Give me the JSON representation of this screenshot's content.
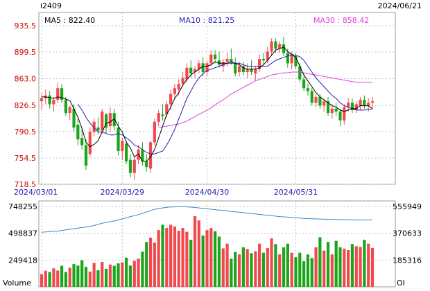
{
  "header": {
    "symbol": "i2409",
    "date": "2024/06/21"
  },
  "legend": {
    "ma5": "MA5 : 822.40",
    "ma10": "MA10 : 821.25",
    "ma30": "MA30 : 858.42"
  },
  "colors": {
    "up": "#f04a50",
    "down": "#1aa51a",
    "ma5": "#000000",
    "ma10": "#1f1fb4",
    "ma30": "#e040e0",
    "oi": "#3a86c8",
    "grid": "#bfbfbf",
    "axis_text": "#cc0000",
    "label_text": "#000000"
  },
  "chart_data": [
    {
      "type": "candlestick",
      "title": "",
      "ylim": [
        718.5,
        953.5
      ],
      "y_ticks": [
        935.5,
        899.5,
        863.0,
        826.5,
        790.5,
        754.5,
        718.5
      ],
      "y_tick_labels": [
        "935.5",
        "899.5",
        "863.0",
        "826.5",
        "790.5",
        "754.5",
        "718.5"
      ],
      "x_tick_labels": [
        {
          "label": "2024/03/01",
          "index": 0
        },
        {
          "label": "2024/03/29",
          "index": 20
        },
        {
          "label": "2024/04/30",
          "index": 41
        },
        {
          "label": "2024/05/31",
          "index": 63
        }
      ],
      "series_names": [
        "MA5",
        "MA10",
        "MA30"
      ],
      "ohlc_description": "daily candles, open/high/low/close in price units, estimated from the chart",
      "ohlc": [
        [
          832,
          842,
          820,
          836
        ],
        [
          836,
          848,
          828,
          840
        ],
        [
          840,
          846,
          822,
          828
        ],
        [
          828,
          838,
          818,
          834
        ],
        [
          834,
          858,
          830,
          850
        ],
        [
          850,
          856,
          830,
          834
        ],
        [
          834,
          838,
          812,
          816
        ],
        [
          816,
          826,
          806,
          824
        ],
        [
          822,
          828,
          790,
          796
        ],
        [
          800,
          808,
          772,
          780
        ],
        [
          782,
          794,
          766,
          772
        ],
        [
          772,
          780,
          738,
          744
        ],
        [
          760,
          796,
          756,
          790
        ],
        [
          790,
          808,
          784,
          804
        ],
        [
          796,
          810,
          786,
          792
        ],
        [
          792,
          822,
          788,
          818
        ],
        [
          814,
          816,
          788,
          796
        ],
        [
          798,
          824,
          790,
          816
        ],
        [
          816,
          822,
          792,
          798
        ],
        [
          796,
          804,
          758,
          764
        ],
        [
          764,
          782,
          752,
          778
        ],
        [
          774,
          778,
          746,
          750
        ],
        [
          752,
          760,
          728,
          734
        ],
        [
          734,
          756,
          724,
          752
        ],
        [
          752,
          772,
          746,
          766
        ],
        [
          766,
          776,
          744,
          750
        ],
        [
          750,
          760,
          736,
          742
        ],
        [
          740,
          778,
          734,
          776
        ],
        [
          776,
          808,
          772,
          804
        ],
        [
          804,
          820,
          798,
          816
        ],
        [
          814,
          828,
          806,
          812
        ],
        [
          814,
          832,
          810,
          828
        ],
        [
          828,
          848,
          820,
          842
        ],
        [
          842,
          856,
          836,
          850
        ],
        [
          848,
          862,
          840,
          856
        ],
        [
          856,
          872,
          852,
          864
        ],
        [
          862,
          884,
          858,
          878
        ],
        [
          878,
          888,
          864,
          870
        ],
        [
          872,
          880,
          864,
          876
        ],
        [
          876,
          888,
          870,
          884
        ],
        [
          884,
          892,
          866,
          872
        ],
        [
          872,
          888,
          866,
          884
        ],
        [
          884,
          902,
          880,
          896
        ],
        [
          896,
          902,
          884,
          890
        ],
        [
          888,
          900,
          878,
          882
        ],
        [
          880,
          890,
          872,
          886
        ],
        [
          886,
          898,
          880,
          890
        ],
        [
          890,
          904,
          882,
          886
        ],
        [
          884,
          892,
          866,
          870
        ],
        [
          872,
          886,
          866,
          880
        ],
        [
          880,
          886,
          868,
          872
        ],
        [
          872,
          884,
          864,
          876
        ],
        [
          876,
          888,
          868,
          872
        ],
        [
          870,
          880,
          860,
          876
        ],
        [
          876,
          896,
          872,
          890
        ],
        [
          890,
          898,
          882,
          888
        ],
        [
          888,
          906,
          884,
          900
        ],
        [
          900,
          918,
          894,
          914
        ],
        [
          914,
          918,
          898,
          904
        ],
        [
          904,
          914,
          898,
          910
        ],
        [
          910,
          920,
          894,
          898
        ],
        [
          898,
          904,
          878,
          884
        ],
        [
          884,
          900,
          876,
          896
        ],
        [
          894,
          898,
          876,
          880
        ],
        [
          880,
          884,
          858,
          862
        ],
        [
          862,
          866,
          846,
          850
        ],
        [
          850,
          856,
          840,
          846
        ],
        [
          846,
          850,
          826,
          830
        ],
        [
          830,
          842,
          824,
          838
        ],
        [
          838,
          842,
          822,
          826
        ],
        [
          826,
          836,
          818,
          832
        ],
        [
          832,
          838,
          812,
          816
        ],
        [
          816,
          828,
          808,
          822
        ],
        [
          822,
          830,
          812,
          818
        ],
        [
          818,
          822,
          798,
          806
        ],
        [
          806,
          828,
          800,
          824
        ],
        [
          824,
          836,
          818,
          830
        ],
        [
          830,
          836,
          816,
          820
        ],
        [
          820,
          832,
          816,
          828
        ],
        [
          826,
          838,
          820,
          834
        ],
        [
          834,
          840,
          822,
          826
        ],
        [
          826,
          836,
          818,
          830
        ],
        [
          830,
          838,
          822,
          832
        ]
      ],
      "ma5": [
        838,
        838,
        837,
        836,
        838,
        837,
        835,
        833,
        822,
        810,
        795,
        776,
        770,
        773,
        778,
        790,
        802,
        804,
        808,
        798,
        790,
        776,
        768,
        756,
        760,
        750,
        750,
        756,
        766,
        782,
        798,
        814,
        824,
        836,
        844,
        854,
        862,
        868,
        872,
        876,
        880,
        880,
        882,
        886,
        884,
        884,
        884,
        886,
        884,
        882,
        878,
        876,
        876,
        876,
        878,
        882,
        888,
        895,
        902,
        904,
        906,
        900,
        896,
        892,
        880,
        868,
        860,
        852,
        844,
        838,
        834,
        830,
        826,
        824,
        820,
        818,
        820,
        822,
        822,
        826,
        826,
        826,
        822
      ],
      "ma10": [
        null,
        null,
        null,
        null,
        null,
        null,
        null,
        null,
        null,
        828,
        820,
        810,
        802,
        796,
        790,
        790,
        788,
        786,
        786,
        788,
        786,
        782,
        778,
        772,
        770,
        766,
        762,
        760,
        760,
        762,
        764,
        772,
        782,
        794,
        808,
        822,
        836,
        846,
        856,
        864,
        870,
        874,
        876,
        878,
        880,
        882,
        884,
        884,
        884,
        884,
        882,
        880,
        880,
        880,
        880,
        880,
        880,
        884,
        888,
        890,
        892,
        894,
        896,
        895,
        893,
        888,
        880,
        872,
        864,
        858,
        852,
        846,
        840,
        836,
        830,
        826,
        824,
        822,
        820,
        820,
        820,
        821,
        821
      ],
      "ma30": [
        null,
        null,
        null,
        null,
        null,
        null,
        null,
        null,
        null,
        null,
        null,
        null,
        null,
        null,
        null,
        null,
        null,
        null,
        null,
        null,
        null,
        null,
        null,
        null,
        null,
        null,
        null,
        null,
        null,
        796,
        797,
        798,
        799,
        800,
        801,
        803,
        805,
        808,
        811,
        814,
        817,
        820,
        823,
        827,
        831,
        834,
        838,
        842,
        845,
        848,
        851,
        854,
        857,
        860,
        862,
        864,
        866,
        868,
        869,
        870,
        871,
        871,
        872,
        872,
        872,
        871,
        870,
        869,
        868,
        867,
        866,
        865,
        864,
        863,
        862,
        861,
        860,
        859,
        858,
        858,
        858,
        858,
        858
      ]
    },
    {
      "type": "bar",
      "title": "",
      "ylabel_left": "Volume",
      "ylabel_right": "OI",
      "ylim_left": [
        0,
        748255
      ],
      "y_ticks_left": [
        748255,
        498837,
        249418
      ],
      "y_tick_labels_left": [
        "748255",
        "498837",
        "249418"
      ],
      "ylim_right": [
        0,
        555949
      ],
      "y_ticks_right": [
        555949,
        370633,
        185316
      ],
      "y_tick_labels_right": [
        "555949",
        "370633",
        "185316"
      ],
      "volume": [
        118000,
        150000,
        138000,
        172000,
        152000,
        196000,
        138000,
        178000,
        212000,
        198000,
        248000,
        186000,
        142000,
        222000,
        154000,
        232000,
        168000,
        208000,
        196000,
        218000,
        228000,
        272000,
        198000,
        242000,
        262000,
        328000,
        418000,
        458000,
        412000,
        528000,
        578000,
        548000,
        578000,
        562000,
        522000,
        548000,
        512000,
        438000,
        658000,
        618000,
        478000,
        528000,
        548000,
        518000,
        468000,
        358000,
        402000,
        262000,
        324000,
        302000,
        368000,
        352000,
        314000,
        332000,
        402000,
        318000,
        362000,
        452000,
        398000,
        302000,
        368000,
        402000,
        318000,
        276000,
        318000,
        238000,
        302000,
        268000,
        368000,
        462000,
        338000,
        418000,
        302000,
        428000,
        368000,
        356000,
        342000,
        398000,
        378000,
        372000,
        438000,
        402000,
        362000
      ],
      "oi": [
        378000,
        380000,
        382000,
        384000,
        386000,
        390000,
        394000,
        398000,
        402000,
        406000,
        410000,
        414000,
        418000,
        424000,
        432000,
        440000,
        446000,
        450000,
        456000,
        462000,
        470000,
        478000,
        486000,
        492000,
        500000,
        508000,
        518000,
        528000,
        536000,
        542000,
        546000,
        550000,
        552000,
        553000,
        554000,
        554000,
        553000,
        551000,
        549000,
        546000,
        543000,
        540000,
        537000,
        534000,
        531000,
        528000,
        525000,
        522000,
        519000,
        516000,
        513000,
        510000,
        507000,
        504000,
        501000,
        498000,
        495000,
        492000,
        489000,
        486000,
        484000,
        482000,
        480000,
        478000,
        476000,
        474000,
        472000,
        471000,
        470000,
        469000,
        468000,
        467000,
        466000,
        466000,
        465000,
        465000,
        464000,
        464000,
        463000,
        463000,
        463000,
        463000,
        463000
      ]
    }
  ]
}
